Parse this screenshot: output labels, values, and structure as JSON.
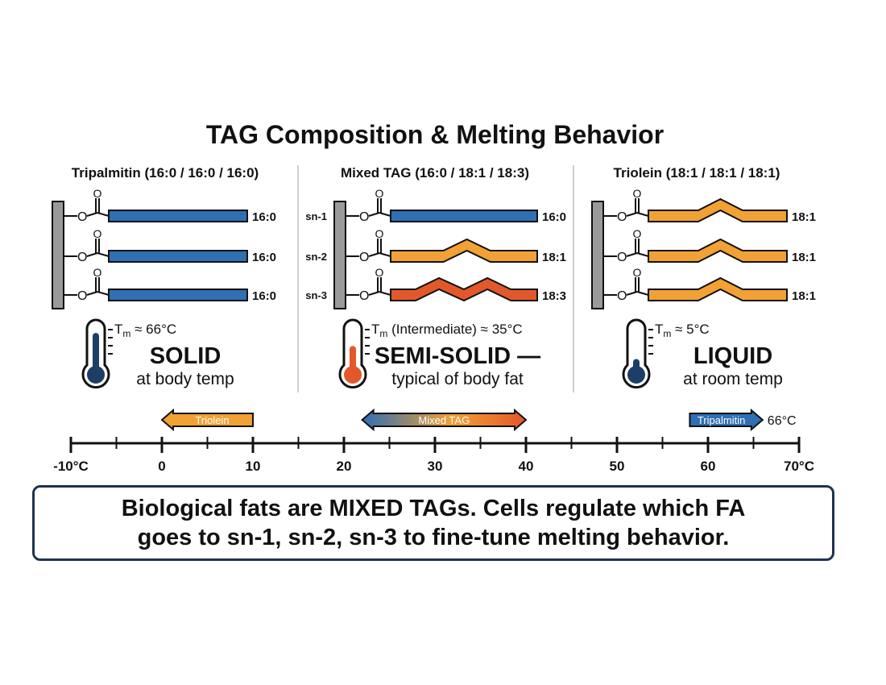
{
  "title": "TAG Composition & Melting Behavior",
  "colors": {
    "saturated": "#2f6fb3",
    "mono": "#f2a134",
    "poly": "#e3582a",
    "backbone": "#9a9a9a",
    "dark_fill": "#1c3f66",
    "box_border": "#1f3350"
  },
  "panels": [
    {
      "id": "tripalmitin",
      "header": "Tripalmitin (16:0 / 16:0 / 16:0)",
      "chains": [
        {
          "position": "",
          "label": "16:0",
          "type": "saturated"
        },
        {
          "position": "",
          "label": "16:0",
          "type": "saturated"
        },
        {
          "position": "",
          "label": "16:0",
          "type": "saturated"
        }
      ],
      "tm_symbol": "T",
      "tm_sub": "m",
      "tm_rest": " ≈ 66°C",
      "state": "SOLID",
      "state_sub": "at body temp",
      "thermo_level": 0.85
    },
    {
      "id": "mixed",
      "header": "Mixed TAG (16:0 / 18:1 / 18:3)",
      "chains": [
        {
          "position": "sn-1",
          "label": "16:0",
          "type": "saturated"
        },
        {
          "position": "sn-2",
          "label": "18:1",
          "type": "mono"
        },
        {
          "position": "sn-3",
          "label": "18:3",
          "type": "poly"
        }
      ],
      "tm_symbol": "T",
      "tm_sub": "m",
      "tm_rest": " (Intermediate) ≈ 35°C",
      "state": "SEMI-SOLID —",
      "state_sub": "typical of body fat",
      "thermo_level": 0.55
    },
    {
      "id": "triolein",
      "header": "Triolein (18:1 / 18:1 / 18:1)",
      "chains": [
        {
          "position": "",
          "label": "18:1",
          "type": "mono"
        },
        {
          "position": "",
          "label": "18:1",
          "type": "mono"
        },
        {
          "position": "",
          "label": "18:1",
          "type": "mono"
        }
      ],
      "tm_symbol": "T",
      "tm_sub": "m",
      "tm_rest": " ≈ 5°C",
      "state": "LIQUID",
      "state_sub": "at room temp",
      "thermo_level": 0.25
    }
  ],
  "carbonyl_o": "O",
  "ester_o": "O",
  "scale": {
    "min": -10,
    "max": 70,
    "major_ticks": [
      -10,
      0,
      10,
      20,
      30,
      40,
      50,
      60,
      70
    ],
    "tick_labels": [
      "-10°C",
      "0",
      "10",
      "20",
      "30",
      "40",
      "50",
      "60",
      "70°C"
    ]
  },
  "range_arrows": [
    {
      "label": "Triolein",
      "from": 10,
      "to": 0,
      "direction": "left",
      "style": "orange"
    },
    {
      "label": "Mixed TAG",
      "from": 22,
      "to": 40,
      "direction": "both",
      "style": "gradient"
    },
    {
      "label": "Tripalmitin",
      "from": 58,
      "to": 66,
      "direction": "right",
      "style": "blue",
      "end_label": "66°C"
    }
  ],
  "summary": {
    "line1": "Biological fats are MIXED TAGs. Cells regulate which FA",
    "line2": "goes to sn-1, sn-2, sn-3 to fine-tune melting behavior."
  }
}
